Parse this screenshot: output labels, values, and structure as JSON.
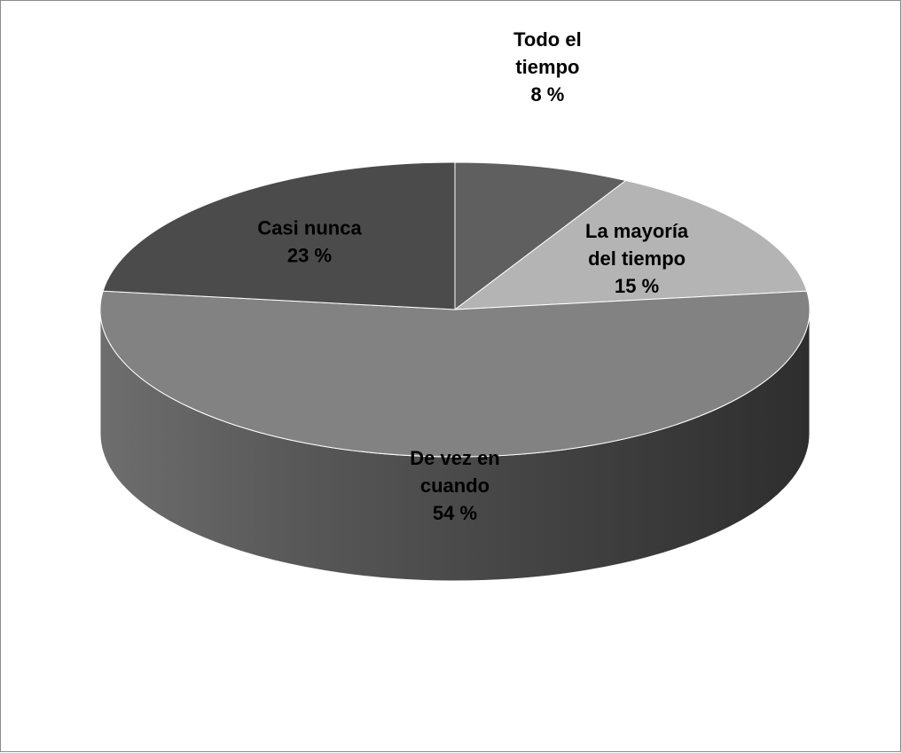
{
  "chart_data": {
    "type": "pie",
    "title": "",
    "slices": [
      {
        "name": "Todo el tiempo",
        "value": 8,
        "value_label": "8 %",
        "label_lines": [
          "Todo el",
          "tiempo"
        ],
        "color": "#5f5f5f"
      },
      {
        "name": "La mayoría del tiempo",
        "value": 15,
        "value_label": "15 %",
        "label_lines": [
          "La mayoría",
          "del tiempo"
        ],
        "color": "#b4b4b4"
      },
      {
        "name": "De vez en cuando",
        "value": 54,
        "value_label": "54 %",
        "label_lines": [
          "De vez en",
          "cuando"
        ],
        "color": "#828282"
      },
      {
        "name": "Casi nunca",
        "value": 23,
        "value_label": "23 %",
        "label_lines": [
          "Casi nunca"
        ],
        "color": "#4b4b4b"
      }
    ],
    "legend": "none",
    "style": "3d"
  }
}
